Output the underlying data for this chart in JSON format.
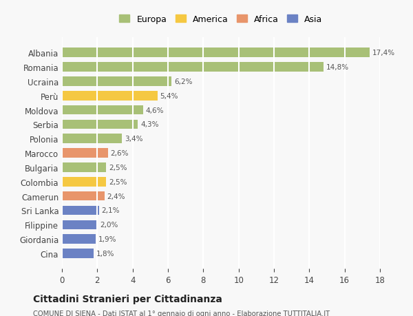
{
  "categories": [
    "Albania",
    "Romania",
    "Ucraina",
    "Perù",
    "Moldova",
    "Serbia",
    "Polonia",
    "Marocco",
    "Bulgaria",
    "Colombia",
    "Camerun",
    "Sri Lanka",
    "Filippine",
    "Giordania",
    "Cina"
  ],
  "values": [
    17.4,
    14.8,
    6.2,
    5.4,
    4.6,
    4.3,
    3.4,
    2.6,
    2.5,
    2.5,
    2.4,
    2.1,
    2.0,
    1.9,
    1.8
  ],
  "labels": [
    "17,4%",
    "14,8%",
    "6,2%",
    "5,4%",
    "4,6%",
    "4,3%",
    "3,4%",
    "2,6%",
    "2,5%",
    "2,5%",
    "2,4%",
    "2,1%",
    "2,0%",
    "1,9%",
    "1,8%"
  ],
  "colors": [
    "#a8c077",
    "#a8c077",
    "#a8c077",
    "#f5c842",
    "#a8c077",
    "#a8c077",
    "#a8c077",
    "#e8956b",
    "#a8c077",
    "#f5c842",
    "#e8956b",
    "#6b82c4",
    "#6b82c4",
    "#6b82c4",
    "#6b82c4"
  ],
  "continent_colors": {
    "Europa": "#a8c077",
    "America": "#f5c842",
    "Africa": "#e8956b",
    "Asia": "#6b82c4"
  },
  "xlim": [
    0,
    18
  ],
  "xticks": [
    0,
    2,
    4,
    6,
    8,
    10,
    12,
    14,
    16,
    18
  ],
  "title": "Cittadini Stranieri per Cittadinanza",
  "subtitle": "COMUNE DI SIENA - Dati ISTAT al 1° gennaio di ogni anno - Elaborazione TUTTITALIA.IT",
  "background_color": "#f8f8f8",
  "grid_color": "#ffffff",
  "bar_height": 0.65
}
